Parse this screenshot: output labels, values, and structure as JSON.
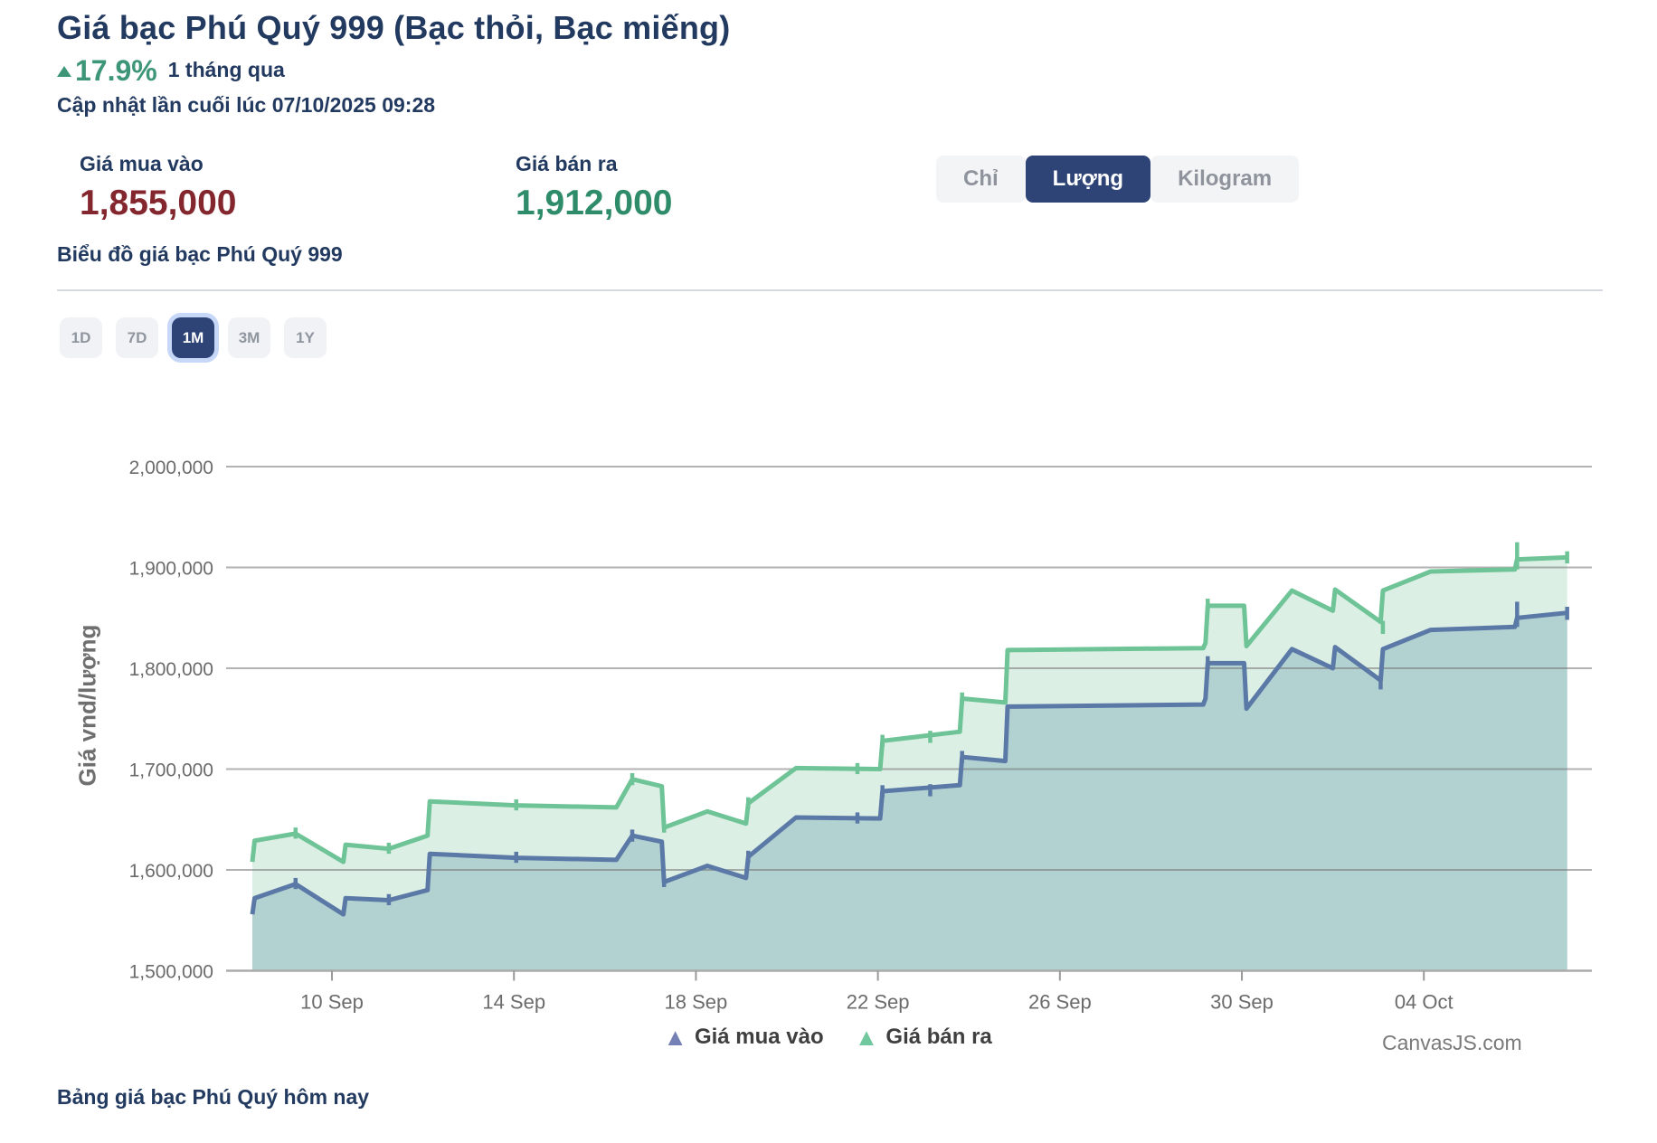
{
  "header": {
    "title": "Giá bạc Phú Quý 999 (Bạc thỏi, Bạc miếng)",
    "change_percent": "17.9%",
    "change_direction": "up",
    "change_period": "1 tháng qua",
    "last_updated": "Cập nhật lần cuối lúc 07/10/2025 09:28"
  },
  "prices": {
    "buy": {
      "label": "Giá mua vào",
      "value": "1,855,000",
      "color": "#84262E"
    },
    "sell": {
      "label": "Giá bán ra",
      "value": "1,912,000",
      "color": "#2F8C6A"
    }
  },
  "unit_toggle": {
    "options": [
      {
        "label": "Chỉ",
        "active": false
      },
      {
        "label": "Lượng",
        "active": true
      },
      {
        "label": "Kilogram",
        "active": false
      }
    ],
    "active_color": "#2E4476"
  },
  "chart_section": {
    "heading": "Biểu đồ giá bạc Phú Quý 999",
    "range_buttons": [
      {
        "label": "1D",
        "active": false
      },
      {
        "label": "7D",
        "active": false
      },
      {
        "label": "1M",
        "active": true
      },
      {
        "label": "3M",
        "active": false
      },
      {
        "label": "1Y",
        "active": false
      }
    ]
  },
  "footer": {
    "table_link": "Bảng giá bạc Phú Quý hôm nay",
    "watermark": "CanvasJS.com"
  },
  "chart_data": {
    "type": "area",
    "title": "",
    "y_axis_title": "Giá vnd/lượng",
    "ylim": [
      1500000,
      2030000
    ],
    "grid": true,
    "legend_position": "bottom",
    "y_ticks": [
      {
        "label": "2,000,000",
        "v": 2000000
      },
      {
        "label": "1,900,000",
        "v": 1900000
      },
      {
        "label": "1,800,000",
        "v": 1800000
      },
      {
        "label": "1,700,000",
        "v": 1700000
      },
      {
        "label": "1,600,000",
        "v": 1600000
      },
      {
        "label": "1,500,000",
        "v": 1500000
      }
    ],
    "x_ticks": [
      {
        "label": "10 Sep",
        "d": 1.75
      },
      {
        "label": "14 Sep",
        "d": 5.75
      },
      {
        "label": "18 Sep",
        "d": 9.75
      },
      {
        "label": "22 Sep",
        "d": 13.75
      },
      {
        "label": "26 Sep",
        "d": 17.75
      },
      {
        "label": "30 Sep",
        "d": 21.75
      },
      {
        "label": "04 Oct",
        "d": 25.75
      }
    ],
    "x_range_days": [
      0,
      28.9
    ],
    "x_start_date": "08 Sep",
    "x_end_date": "07 Oct",
    "series": [
      {
        "name": "Giá bán ra",
        "color": "#6EC496",
        "fill": "#DCEFE5",
        "legend_color": "#72C89E",
        "points": [
          [
            0,
            1608000
          ],
          [
            0.05,
            1629000
          ],
          [
            0.95,
            1636000
          ],
          [
            2.0,
            1608000
          ],
          [
            2.05,
            1625000
          ],
          [
            3.0,
            1621000
          ],
          [
            3.85,
            1634000
          ],
          [
            3.9,
            1668000
          ],
          [
            5.8,
            1664000
          ],
          [
            8.0,
            1662000
          ],
          [
            8.35,
            1690000
          ],
          [
            9.0,
            1683000
          ],
          [
            9.05,
            1642000
          ],
          [
            10.0,
            1658000
          ],
          [
            10.85,
            1646000
          ],
          [
            10.9,
            1666000
          ],
          [
            11.95,
            1701000
          ],
          [
            13.8,
            1700000
          ],
          [
            13.85,
            1728000
          ],
          [
            15.55,
            1737000
          ],
          [
            15.6,
            1770000
          ],
          [
            16.55,
            1766000
          ],
          [
            16.6,
            1818000
          ],
          [
            20.9,
            1820000
          ],
          [
            20.95,
            1825000
          ],
          [
            21.0,
            1862000
          ],
          [
            21.8,
            1862000
          ],
          [
            21.85,
            1822000
          ],
          [
            22.85,
            1877000
          ],
          [
            23.75,
            1857000
          ],
          [
            23.8,
            1878000
          ],
          [
            24.8,
            1846000
          ],
          [
            24.85,
            1877000
          ],
          [
            25.9,
            1896000
          ],
          [
            27.75,
            1898000
          ],
          [
            27.8,
            1908000
          ],
          [
            28.9,
            1910000
          ]
        ],
        "whiskers": [
          [
            0.95,
            1631000,
            1642000
          ],
          [
            3.0,
            1616000,
            1627000
          ],
          [
            5.8,
            1659000,
            1670000
          ],
          [
            8.35,
            1684000,
            1696000
          ],
          [
            9.05,
            1637000,
            1648000
          ],
          [
            10.9,
            1661000,
            1672000
          ],
          [
            13.3,
            1695000,
            1706000
          ],
          [
            13.85,
            1722000,
            1734000
          ],
          [
            14.9,
            1726000,
            1738000
          ],
          [
            15.6,
            1764000,
            1776000
          ],
          [
            21.0,
            1856000,
            1869000
          ],
          [
            24.85,
            1834000,
            1847000
          ],
          [
            27.8,
            1898000,
            1925000
          ],
          [
            28.9,
            1904000,
            1916000
          ]
        ]
      },
      {
        "name": "Giá mua vào",
        "color": "#5B79A6",
        "fill": "#B2D1D1",
        "legend_color": "#7580B4",
        "points": [
          [
            0,
            1556000
          ],
          [
            0.05,
            1572000
          ],
          [
            0.95,
            1586000
          ],
          [
            2.0,
            1556000
          ],
          [
            2.05,
            1572000
          ],
          [
            3.0,
            1570000
          ],
          [
            3.85,
            1580000
          ],
          [
            3.9,
            1616000
          ],
          [
            5.8,
            1612000
          ],
          [
            8.0,
            1610000
          ],
          [
            8.35,
            1634000
          ],
          [
            9.0,
            1628000
          ],
          [
            9.05,
            1588000
          ],
          [
            10.0,
            1604000
          ],
          [
            10.85,
            1592000
          ],
          [
            10.9,
            1613000
          ],
          [
            11.95,
            1652000
          ],
          [
            13.8,
            1651000
          ],
          [
            13.85,
            1678000
          ],
          [
            15.55,
            1684000
          ],
          [
            15.6,
            1712000
          ],
          [
            16.55,
            1708000
          ],
          [
            16.6,
            1762000
          ],
          [
            20.9,
            1764000
          ],
          [
            20.95,
            1770000
          ],
          [
            21.0,
            1805000
          ],
          [
            21.8,
            1805000
          ],
          [
            21.85,
            1760000
          ],
          [
            22.85,
            1819000
          ],
          [
            23.75,
            1800000
          ],
          [
            23.8,
            1821000
          ],
          [
            24.8,
            1788000
          ],
          [
            24.85,
            1819000
          ],
          [
            25.9,
            1838000
          ],
          [
            27.75,
            1841000
          ],
          [
            27.8,
            1850000
          ],
          [
            28.9,
            1855000
          ]
        ],
        "whiskers": [
          [
            0.95,
            1581000,
            1592000
          ],
          [
            3.0,
            1565000,
            1576000
          ],
          [
            5.8,
            1607000,
            1618000
          ],
          [
            8.35,
            1628000,
            1640000
          ],
          [
            9.05,
            1583000,
            1594000
          ],
          [
            10.9,
            1607000,
            1619000
          ],
          [
            13.3,
            1646000,
            1657000
          ],
          [
            13.85,
            1672000,
            1684000
          ],
          [
            14.9,
            1673000,
            1685000
          ],
          [
            15.6,
            1706000,
            1718000
          ],
          [
            21.0,
            1799000,
            1812000
          ],
          [
            24.8,
            1779000,
            1790000
          ],
          [
            27.8,
            1841000,
            1866000
          ],
          [
            28.9,
            1848000,
            1861000
          ]
        ]
      }
    ],
    "legend_order": [
      "Giá mua vào",
      "Giá bán ra"
    ]
  }
}
